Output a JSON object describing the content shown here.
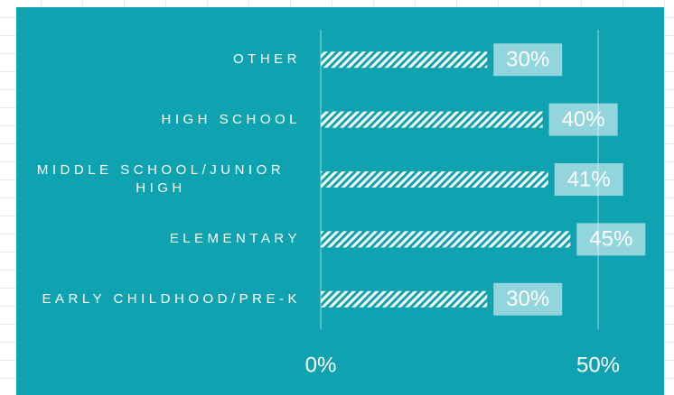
{
  "chart_data": {
    "type": "hbar",
    "categories": [
      "OTHER",
      "HIGH SCHOOL",
      "MIDDLE SCHOOL/JUNIOR HIGH",
      "ELEMENTARY",
      "EARLY CHILDHOOD/PRE-K"
    ],
    "values": [
      30,
      40,
      41,
      45,
      30
    ],
    "value_labels": [
      "30%",
      "40%",
      "41%",
      "45%",
      "30%"
    ],
    "xlim": [
      0,
      50
    ],
    "xticks": [
      {
        "value": 0,
        "label": "0%"
      },
      {
        "value": 50,
        "label": "50%"
      }
    ],
    "grid": true,
    "color": "#ffffff",
    "background": "#0fa3b1"
  }
}
